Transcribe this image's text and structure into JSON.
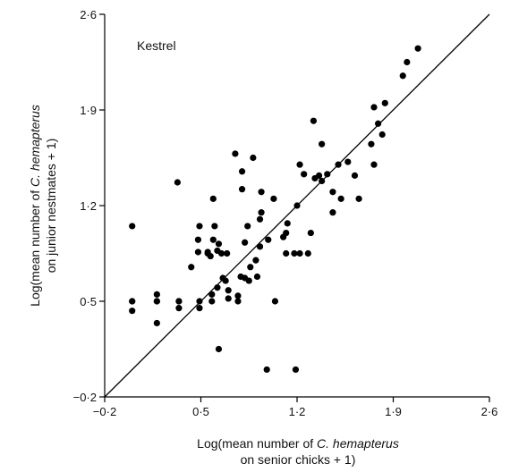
{
  "chart_data": {
    "type": "scatter",
    "title": "",
    "annotation": "Kestrel",
    "xlabel": {
      "line1_prefix": "Log(mean number of ",
      "line1_italic": "C. hemapterus",
      "line2": "on senior chicks + 1)"
    },
    "ylabel": {
      "line1_prefix": "Log(mean number of ",
      "line1_italic": "C. hemapterus",
      "line2": "on junior nestmates + 1)"
    },
    "xlim": [
      -0.2,
      2.6
    ],
    "ylim": [
      -0.2,
      2.6
    ],
    "xticks": [
      -0.2,
      0.5,
      1.2,
      1.9,
      2.6
    ],
    "yticks": [
      -0.2,
      0.5,
      1.2,
      1.9,
      2.6
    ],
    "xtick_labels": [
      "−0·2",
      "0·5",
      "1·2",
      "1·9",
      "2·6"
    ],
    "ytick_labels": [
      "−0·2",
      "0·5",
      "1·2",
      "1·9",
      "2·6"
    ],
    "reference_line": {
      "x": [
        -0.2,
        2.6
      ],
      "y": [
        -0.2,
        2.6
      ]
    },
    "grid": false,
    "x": [
      0.0,
      0.0,
      0.0,
      0.0,
      0.18,
      0.18,
      0.18,
      0.18,
      0.33,
      0.34,
      0.34,
      0.34,
      0.43,
      0.48,
      0.48,
      0.49,
      0.49,
      0.49,
      0.55,
      0.55,
      0.57,
      0.58,
      0.58,
      0.59,
      0.59,
      0.6,
      0.62,
      0.62,
      0.63,
      0.63,
      0.65,
      0.66,
      0.68,
      0.69,
      0.7,
      0.7,
      0.75,
      0.77,
      0.77,
      0.79,
      0.8,
      0.8,
      0.82,
      0.82,
      0.84,
      0.85,
      0.86,
      0.88,
      0.9,
      0.91,
      0.93,
      0.93,
      0.94,
      0.94,
      0.98,
      0.99,
      1.03,
      1.04,
      1.1,
      1.12,
      1.12,
      1.13,
      1.18,
      1.19,
      1.2,
      1.22,
      1.22,
      1.25,
      1.28,
      1.3,
      1.32,
      1.33,
      1.36,
      1.38,
      1.38,
      1.42,
      1.46,
      1.46,
      1.5,
      1.52,
      1.57,
      1.62,
      1.65,
      1.74,
      1.76,
      1.76,
      1.79,
      1.82,
      1.84,
      1.97,
      2.0,
      2.08
    ],
    "y": [
      1.05,
      0.5,
      0.43,
      0.5,
      0.5,
      0.5,
      0.55,
      0.34,
      1.37,
      0.5,
      0.45,
      0.5,
      0.75,
      0.86,
      0.95,
      1.05,
      0.5,
      0.45,
      0.85,
      0.86,
      0.83,
      0.5,
      0.55,
      0.95,
      1.25,
      1.05,
      0.6,
      0.87,
      0.15,
      0.92,
      0.85,
      0.67,
      0.65,
      0.85,
      0.58,
      0.52,
      1.58,
      0.5,
      0.54,
      0.68,
      1.32,
      1.45,
      0.67,
      0.93,
      1.05,
      0.65,
      0.75,
      1.55,
      0.8,
      0.68,
      0.9,
      1.1,
      1.15,
      1.3,
      0.0,
      0.95,
      1.25,
      0.5,
      0.97,
      0.85,
      1.0,
      1.07,
      0.85,
      0.0,
      1.2,
      0.85,
      1.5,
      1.43,
      0.85,
      1.0,
      1.82,
      1.4,
      1.42,
      1.38,
      1.65,
      1.43,
      1.15,
      1.3,
      1.5,
      1.25,
      1.52,
      1.42,
      1.25,
      1.65,
      1.5,
      1.92,
      1.8,
      1.72,
      1.95,
      2.15,
      2.25,
      2.35
    ]
  }
}
